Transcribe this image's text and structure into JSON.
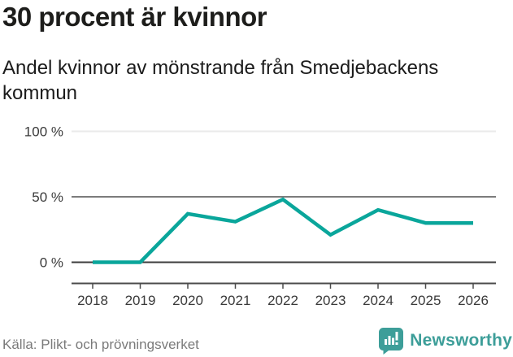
{
  "header": {
    "title": "30 procent är kvinnor",
    "subtitle": "Andel kvinnor av mönstrande från Smedjebackens kommun"
  },
  "chart_data": {
    "type": "line",
    "title": "30 procent är kvinnor",
    "subtitle": "Andel kvinnor av mönstrande från Smedjebackens kommun",
    "x": [
      "2018",
      "2019",
      "2020",
      "2021",
      "2022",
      "2023",
      "2024",
      "2025",
      "2026"
    ],
    "series": [
      {
        "name": "Andel kvinnor av mönstrande (%)",
        "values": [
          0,
          0,
          37,
          31,
          48,
          21,
          40,
          30,
          30
        ]
      }
    ],
    "ylim": [
      0,
      100
    ],
    "yticks": [
      {
        "value": 100,
        "label": "100 %"
      },
      {
        "value": 50,
        "label": "50 %"
      },
      {
        "value": 0,
        "label": "0 %"
      }
    ],
    "grid": true,
    "legend": false,
    "line_color": "#0aa69b",
    "source": "Källa: Plikt- och prövningsverket"
  },
  "footer": {
    "source": "Källa: Plikt- och prövningsverket",
    "brand": "Newsworthy",
    "brand_color": "#3d9e99"
  },
  "icons": {
    "logo": "newsworthy-bar-chart-speech-bubble-icon"
  }
}
